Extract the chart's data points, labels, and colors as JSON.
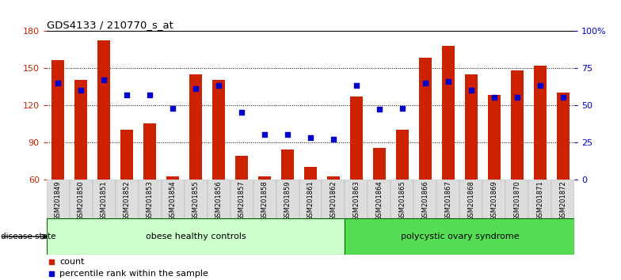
{
  "title": "GDS4133 / 210770_s_at",
  "samples": [
    "GSM201849",
    "GSM201850",
    "GSM201851",
    "GSM201852",
    "GSM201853",
    "GSM201854",
    "GSM201855",
    "GSM201856",
    "GSM201857",
    "GSM201858",
    "GSM201859",
    "GSM201861",
    "GSM201862",
    "GSM201863",
    "GSM201864",
    "GSM201865",
    "GSM201866",
    "GSM201867",
    "GSM201868",
    "GSM201869",
    "GSM201870",
    "GSM201871",
    "GSM201872"
  ],
  "counts": [
    156,
    140,
    172,
    100,
    105,
    62,
    145,
    140,
    79,
    62,
    84,
    70,
    62,
    127,
    85,
    100,
    158,
    168,
    145,
    128,
    148,
    152,
    130
  ],
  "percentiles": [
    65,
    60,
    67,
    57,
    57,
    48,
    61,
    63,
    45,
    30,
    30,
    28,
    27,
    63,
    47,
    48,
    65,
    66,
    60,
    55,
    55,
    63,
    55
  ],
  "group1_label": "obese healthy controls",
  "group2_label": "polycystic ovary syndrome",
  "group1_count": 13,
  "group2_count": 10,
  "ylim_left": [
    60,
    180
  ],
  "ylim_right": [
    0,
    100
  ],
  "yticks_left": [
    60,
    90,
    120,
    150,
    180
  ],
  "yticks_right": [
    0,
    25,
    50,
    75,
    100
  ],
  "ytick_labels_right": [
    "0",
    "25",
    "50",
    "75",
    "100%"
  ],
  "bar_color": "#cc2200",
  "dot_color": "#0000cc",
  "left_axis_color": "#cc2200",
  "right_axis_color": "#0000cc",
  "group1_bg": "#ccffcc",
  "group2_bg": "#55dd55",
  "xtick_bg": "#dddddd",
  "legend_count_label": "count",
  "legend_pct_label": "percentile rank within the sample",
  "bar_width": 0.55
}
